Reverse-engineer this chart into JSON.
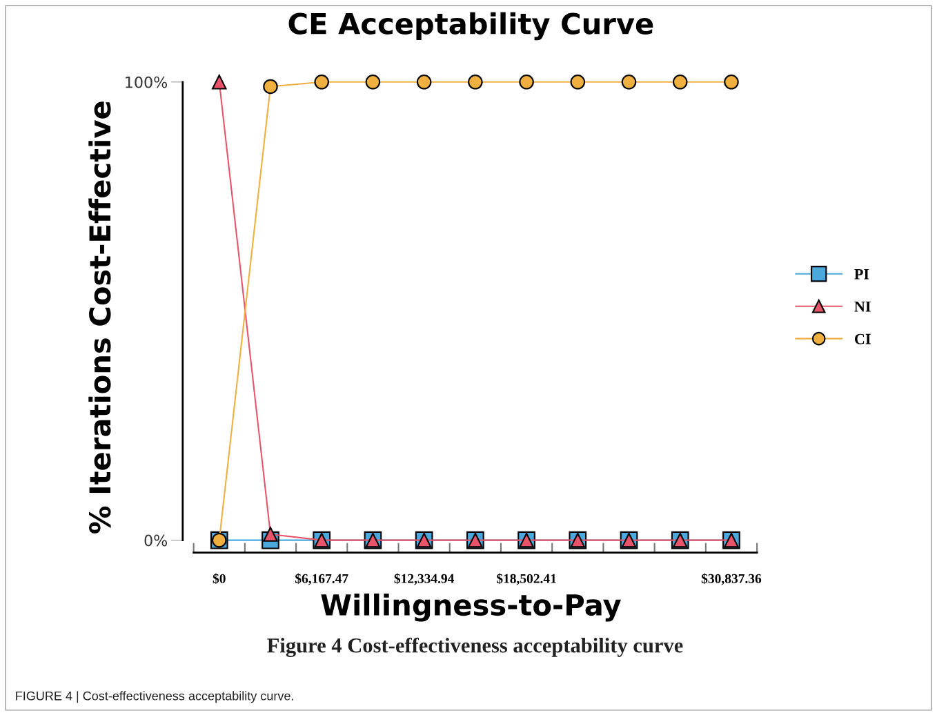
{
  "chart_data": {
    "type": "line",
    "title": "CE Acceptability Curve",
    "xlabel": "Willingness-to-Pay",
    "ylabel": "% Iterations Cost-Effective",
    "x": [
      0,
      3083.736,
      6167.47,
      9251.21,
      12334.94,
      15418.68,
      18502.41,
      21586.15,
      24669.89,
      27753.62,
      30837.36
    ],
    "series": [
      {
        "name": "PI",
        "color": "#4aa8dc",
        "marker": "square",
        "values": [
          0,
          0,
          0,
          0,
          0,
          0,
          0,
          0,
          0,
          0,
          0
        ]
      },
      {
        "name": "NI",
        "color": "#e8546a",
        "marker": "triangle",
        "values": [
          100,
          1.3,
          0,
          0,
          0,
          0,
          0,
          0,
          0,
          0,
          0
        ]
      },
      {
        "name": "CI",
        "color": "#f0b040",
        "marker": "circle",
        "values": [
          0,
          99,
          100,
          100,
          100,
          100,
          100,
          100,
          100,
          100,
          100
        ]
      }
    ],
    "xlim": [
      -2200,
      32500
    ],
    "ylim": [
      -2.7,
      100
    ],
    "xticks": [
      {
        "value": -1541.868,
        "label": null
      },
      {
        "value": 0,
        "label": "$0"
      },
      {
        "value": 1541.868,
        "label": null
      },
      {
        "value": 4625.6,
        "label": null
      },
      {
        "value": 6167.47,
        "label": "$6,167.47"
      },
      {
        "value": 7709.34,
        "label": null
      },
      {
        "value": 10793.08,
        "label": null
      },
      {
        "value": 12334.94,
        "label": "$12,334.94"
      },
      {
        "value": 13876.81,
        "label": null
      },
      {
        "value": 16960.55,
        "label": null
      },
      {
        "value": 18502.41,
        "label": "$18,502.41"
      },
      {
        "value": 20044.28,
        "label": null
      },
      {
        "value": 23128.02,
        "label": null
      },
      {
        "value": 26211.76,
        "label": null
      },
      {
        "value": 29295.49,
        "label": null
      },
      {
        "value": 30837.36,
        "label": "$30,837.36"
      },
      {
        "value": 32379.23,
        "label": null
      }
    ],
    "yticks": [
      {
        "value": 0,
        "label": "0%"
      },
      {
        "value": 100,
        "label": "100%"
      }
    ],
    "grid": false,
    "legend": "right",
    "line_style": "solid",
    "annotations": [
      "Figure 4 Cost-effectiveness acceptability curve",
      "FIGURE 4 | Cost-effectiveness acceptability curve."
    ]
  }
}
